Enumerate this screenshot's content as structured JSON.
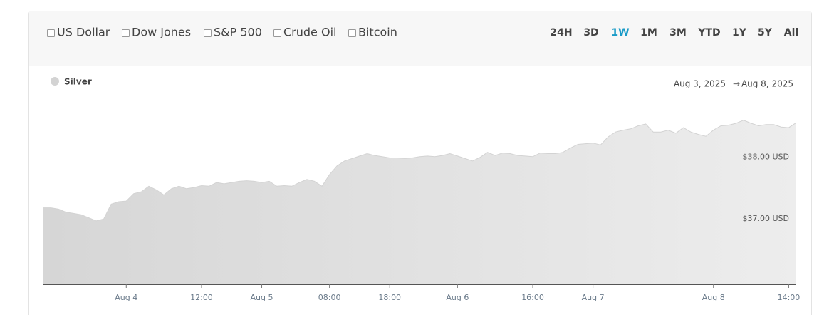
{
  "toolbar": {
    "compare": [
      "US Dollar",
      "Dow Jones",
      "S&P 500",
      "Crude Oil",
      "Bitcoin"
    ],
    "ranges": [
      "24H",
      "3D",
      "1W",
      "1M",
      "3M",
      "YTD",
      "1Y",
      "5Y",
      "All"
    ],
    "active_range": "1W"
  },
  "date_range": {
    "start": "Aug 3, 2025",
    "separator": "→",
    "end": "Aug 8, 2025"
  },
  "chart_data": {
    "type": "area",
    "categories": [
      null,
      null,
      null,
      null,
      null,
      null,
      null,
      null,
      null,
      null,
      null,
      "Aug 4",
      null,
      null,
      null,
      null,
      null,
      null,
      null,
      null,
      null,
      "12:00",
      null,
      null,
      null,
      null,
      null,
      null,
      null,
      "Aug 5",
      null,
      null,
      null,
      null,
      null,
      null,
      null,
      null,
      "08:00",
      null,
      null,
      null,
      null,
      null,
      null,
      null,
      "18:00",
      null,
      null,
      null,
      null,
      null,
      null,
      null,
      null,
      "Aug 6",
      null,
      null,
      null,
      null,
      null,
      null,
      null,
      null,
      null,
      "16:00",
      null,
      null,
      null,
      null,
      null,
      null,
      null,
      "Aug 7",
      null,
      null,
      null,
      null,
      null,
      null,
      null,
      null,
      null,
      null,
      null,
      null,
      null,
      null,
      null,
      "Aug 8",
      null,
      null,
      null,
      null,
      null,
      null,
      null,
      null,
      null,
      "14:00",
      null
    ],
    "series": [
      {
        "name": "Silver",
        "color": "#d3d3d3",
        "values": [
          37.18,
          37.18,
          37.16,
          37.11,
          37.09,
          37.07,
          37.02,
          36.97,
          37,
          37.24,
          37.28,
          37.29,
          37.41,
          37.44,
          37.53,
          37.47,
          37.39,
          37.49,
          37.53,
          37.49,
          37.51,
          37.54,
          37.53,
          37.59,
          37.57,
          37.59,
          37.61,
          37.62,
          37.61,
          37.59,
          37.61,
          37.53,
          37.54,
          37.53,
          37.59,
          37.64,
          37.61,
          37.53,
          37.72,
          37.86,
          37.94,
          37.98,
          38.02,
          38.06,
          38.03,
          38.01,
          37.99,
          37.99,
          37.98,
          37.99,
          38.01,
          38.02,
          38.01,
          38.03,
          38.06,
          38.02,
          37.98,
          37.94,
          38,
          38.08,
          38.03,
          38.07,
          38.06,
          38.03,
          38.02,
          38.01,
          38.07,
          38.06,
          38.06,
          38.08,
          38.15,
          38.21,
          38.22,
          38.23,
          38.2,
          38.33,
          38.41,
          38.44,
          38.46,
          38.51,
          38.54,
          38.41,
          38.41,
          38.44,
          38.39,
          38.48,
          38.41,
          38.37,
          38.34,
          38.44,
          38.51,
          38.52,
          38.55,
          38.6,
          38.55,
          38.51,
          38.53,
          38.53,
          38.49,
          38.48,
          38.56
        ]
      }
    ],
    "ylim": [
      35.94,
      38.92
    ],
    "yticks": [
      {
        "value": 37,
        "label": "$37.00 USD"
      },
      {
        "value": 38,
        "label": "$38.00 USD"
      }
    ]
  }
}
